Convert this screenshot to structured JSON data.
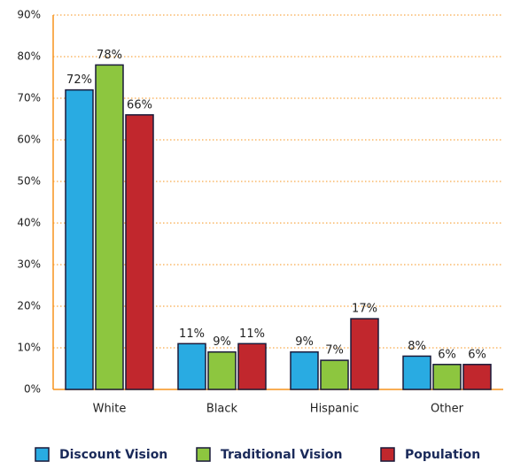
{
  "chart_data": {
    "type": "bar",
    "categories": [
      "White",
      "Black",
      "Hispanic",
      "Other"
    ],
    "series": [
      {
        "name": "Discount Vision",
        "color": "#29abe2",
        "values": [
          72,
          11,
          9,
          8
        ],
        "value_labels": [
          "72%",
          "11%",
          "9%",
          "8%"
        ]
      },
      {
        "name": "Traditional Vision",
        "color": "#8dc63f",
        "values": [
          78,
          9,
          7,
          6
        ],
        "value_labels": [
          "78%",
          "9%",
          "7%",
          "6%"
        ]
      },
      {
        "name": "Population",
        "color": "#c1272d",
        "values": [
          66,
          11,
          17,
          6
        ],
        "value_labels": [
          "66%",
          "11%",
          "17%",
          "6%"
        ]
      }
    ],
    "ylim": [
      0,
      90
    ],
    "yticks": [
      {
        "value": 0,
        "label": "0%"
      },
      {
        "value": 10,
        "label": "10%"
      },
      {
        "value": 20,
        "label": "20%"
      },
      {
        "value": 30,
        "label": "30%"
      },
      {
        "value": 40,
        "label": "40%"
      },
      {
        "value": 50,
        "label": "50%"
      },
      {
        "value": 60,
        "label": "60%"
      },
      {
        "value": 70,
        "label": "70%"
      },
      {
        "value": 80,
        "label": "80%"
      },
      {
        "value": 90,
        "label": "90%"
      }
    ],
    "grid": true,
    "legend": "bottom"
  }
}
